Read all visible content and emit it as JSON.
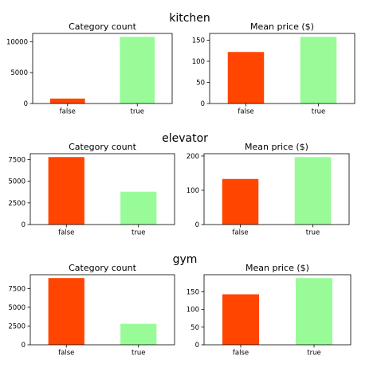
{
  "colors": {
    "false": "#ff4500",
    "true": "#98fb98"
  },
  "chart_data": [
    {
      "type": "bar",
      "group": "kitchen",
      "title": "Category count",
      "categories": [
        "false",
        "true"
      ],
      "values": [
        800,
        10800
      ],
      "ylim": [
        0,
        11340
      ],
      "yticks": [
        0,
        5000,
        10000
      ]
    },
    {
      "type": "bar",
      "group": "kitchen",
      "title": "Mean price ($)",
      "categories": [
        "false",
        "true"
      ],
      "values": [
        122,
        158
      ],
      "ylim": [
        0,
        165.9
      ],
      "yticks": [
        0,
        50,
        100,
        150
      ]
    },
    {
      "type": "bar",
      "group": "elevator",
      "title": "Category count",
      "categories": [
        "false",
        "true"
      ],
      "values": [
        7800,
        3800
      ],
      "ylim": [
        0,
        8190
      ],
      "yticks": [
        0,
        2500,
        5000,
        7500
      ]
    },
    {
      "type": "bar",
      "group": "elevator",
      "title": "Mean price ($)",
      "categories": [
        "false",
        "true"
      ],
      "values": [
        133,
        197
      ],
      "ylim": [
        0,
        206.85
      ],
      "yticks": [
        0,
        100,
        200
      ]
    },
    {
      "type": "bar",
      "group": "gym",
      "title": "Category count",
      "categories": [
        "false",
        "true"
      ],
      "values": [
        8900,
        2800
      ],
      "ylim": [
        0,
        9345
      ],
      "yticks": [
        0,
        2500,
        5000,
        7500
      ]
    },
    {
      "type": "bar",
      "group": "gym",
      "title": "Mean price ($)",
      "categories": [
        "false",
        "true"
      ],
      "values": [
        143,
        189
      ],
      "ylim": [
        0,
        198.45
      ],
      "yticks": [
        0,
        50,
        100,
        150
      ]
    }
  ],
  "suptitles": [
    "kitchen",
    "elevator",
    "gym"
  ]
}
